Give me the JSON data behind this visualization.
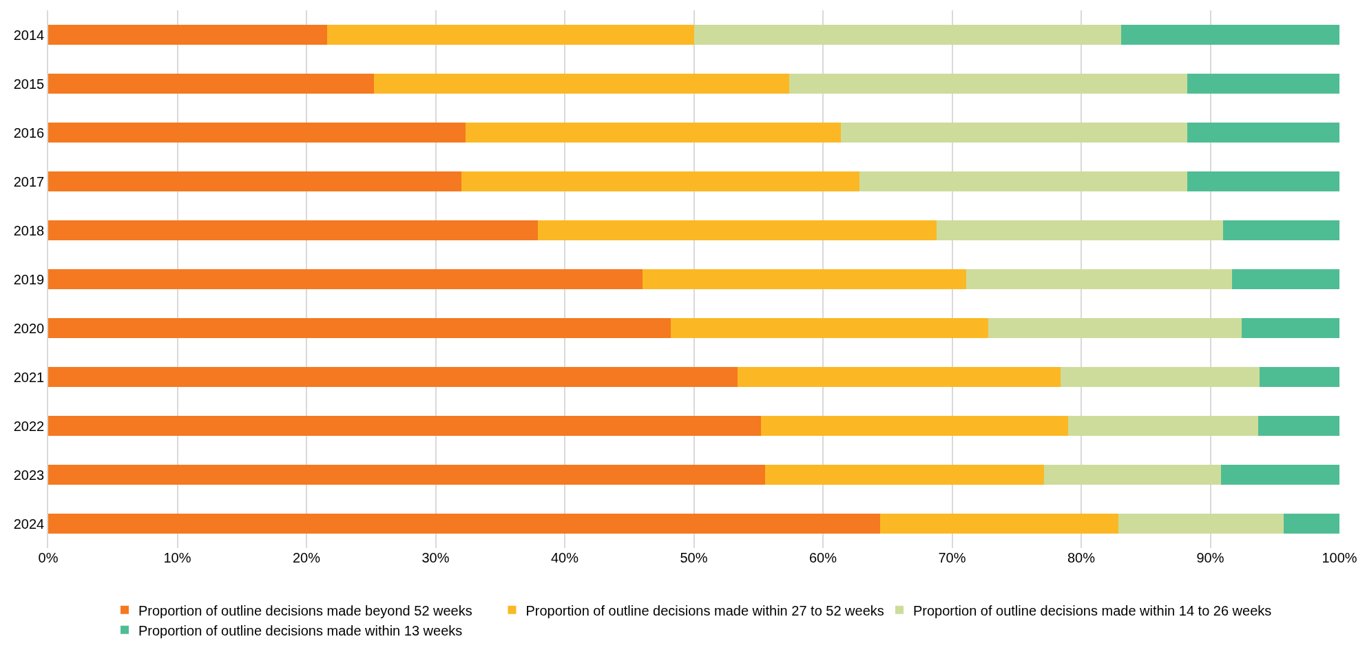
{
  "chart_data": {
    "type": "bar",
    "orientation": "horizontal",
    "stacked": true,
    "categories": [
      "2014",
      "2015",
      "2016",
      "2017",
      "2018",
      "2019",
      "2020",
      "2021",
      "2022",
      "2023",
      "2024"
    ],
    "series": [
      {
        "name": "Proportion of outline decisions made beyond 52 weeks",
        "color": "#f47920",
        "values": [
          21.6,
          25.2,
          32.3,
          32.0,
          37.9,
          46.0,
          48.2,
          53.4,
          55.2,
          55.5,
          64.4
        ]
      },
      {
        "name": "Proportion of outline decisions made within 27 to 52 weeks",
        "color": "#fbb824",
        "values": [
          28.4,
          32.2,
          29.1,
          30.8,
          30.9,
          25.1,
          24.6,
          25.0,
          23.8,
          21.6,
          18.5
        ]
      },
      {
        "name": "Proportion of outline decisions made within 14 to 26 weeks",
        "color": "#cddc9a",
        "values": [
          33.1,
          30.8,
          26.8,
          25.4,
          22.2,
          20.6,
          19.6,
          15.4,
          14.7,
          13.7,
          12.8
        ]
      },
      {
        "name": "Proportion of outline decisions made within 13 weeks",
        "color": "#4fbd93",
        "values": [
          16.9,
          11.8,
          11.8,
          11.8,
          9.0,
          8.3,
          7.6,
          6.2,
          6.3,
          9.2,
          4.3
        ]
      }
    ],
    "xlim": [
      0,
      100
    ],
    "xticks": [
      {
        "value": 0,
        "label": "0%"
      },
      {
        "value": 10,
        "label": "10%"
      },
      {
        "value": 20,
        "label": "20%"
      },
      {
        "value": 30,
        "label": "30%"
      },
      {
        "value": 40,
        "label": "40%"
      },
      {
        "value": 50,
        "label": "50%"
      },
      {
        "value": 60,
        "label": "60%"
      },
      {
        "value": 70,
        "label": "70%"
      },
      {
        "value": 80,
        "label": "80%"
      },
      {
        "value": 90,
        "label": "90%"
      },
      {
        "value": 100,
        "label": "100%"
      }
    ],
    "grid": "x",
    "legend": "bottom"
  }
}
